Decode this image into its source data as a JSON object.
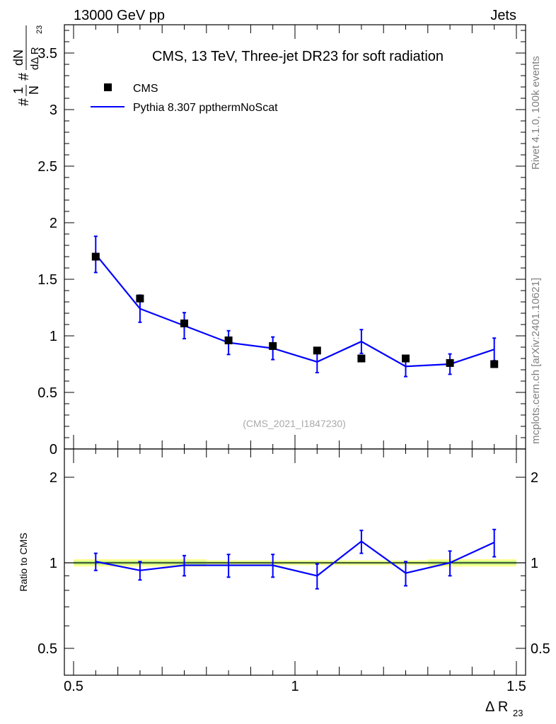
{
  "header": {
    "left": "13000 GeV pp",
    "right": "Jets"
  },
  "side": {
    "rivet": "Rivet 4.1.0,  100k events",
    "mcplots": "mcplots.cern.ch [arXiv:2401.10621]"
  },
  "chart_data": [
    {
      "type": "scatter",
      "title": "CMS, 13 TeV, Three-jet DR23 for soft radiation",
      "ylabel": "#1/N #dN/dΔ R23",
      "ylabel_parts": {
        "hash1": "#",
        "one": "1",
        "N": "N",
        "hash2": "#",
        "dN": "dN",
        "dDR": "dΔ R",
        "sub": "23"
      },
      "xlabel": "Δ R",
      "xlabel_sub": "23",
      "xlim": [
        0.5,
        1.5
      ],
      "ylim": [
        0,
        3.75
      ],
      "yticks": [
        0,
        0.5,
        1,
        1.5,
        2,
        2.5,
        3,
        3.5
      ],
      "ytick_labels": [
        "0",
        "0.5",
        "1",
        "1.5",
        "2",
        "2.5",
        "3",
        "3.5"
      ],
      "xticks": [
        0.5,
        1,
        1.5
      ],
      "xtick_labels": [
        "0.5",
        "1",
        "1.5"
      ],
      "annotation": "(CMS_2021_I1847230)",
      "legend_position": "top-left",
      "legend": [
        {
          "name": "CMS",
          "marker": "square",
          "color": "#000000"
        },
        {
          "name": "Pythia 8.307 ppthermNoScat",
          "marker": "line",
          "color": "#0000ff"
        }
      ],
      "data_series": {
        "name": "CMS",
        "x": [
          0.55,
          0.65,
          0.75,
          0.85,
          0.95,
          1.05,
          1.15,
          1.25,
          1.35,
          1.45
        ],
        "y": [
          1.7,
          1.33,
          1.11,
          0.96,
          0.91,
          0.87,
          0.8,
          0.8,
          0.76,
          0.75
        ]
      },
      "mc_series": {
        "name": "Pythia 8.307 ppthermNoScat",
        "x": [
          0.55,
          0.65,
          0.75,
          0.85,
          0.95,
          1.05,
          1.15,
          1.25,
          1.35,
          1.45
        ],
        "y": [
          1.72,
          1.24,
          1.09,
          0.94,
          0.89,
          0.77,
          0.95,
          0.73,
          0.75,
          0.88
        ],
        "err": [
          0.16,
          0.12,
          0.115,
          0.105,
          0.1,
          0.095,
          0.105,
          0.09,
          0.09,
          0.1
        ]
      }
    },
    {
      "type": "line",
      "ylabel": "Ratio to CMS",
      "xlim": [
        0.5,
        1.5
      ],
      "ylim": [
        0.4,
        2.4
      ],
      "ylog": true,
      "yticks": [
        0.5,
        1,
        2
      ],
      "ytick_labels": [
        "0.5",
        "1",
        "2"
      ],
      "x": [
        0.55,
        0.65,
        0.75,
        0.85,
        0.95,
        1.05,
        1.15,
        1.25,
        1.35,
        1.45
      ],
      "ratio": [
        1.01,
        0.94,
        0.98,
        0.98,
        0.98,
        0.9,
        1.19,
        0.92,
        1.0,
        1.18
      ],
      "ratio_err": [
        0.07,
        0.07,
        0.08,
        0.09,
        0.09,
        0.09,
        0.11,
        0.09,
        0.1,
        0.13
      ],
      "band_err": [
        0.03,
        0.03,
        0.03,
        0.02,
        0.02,
        0.02,
        0.02,
        0.02,
        0.03,
        0.03
      ]
    }
  ]
}
